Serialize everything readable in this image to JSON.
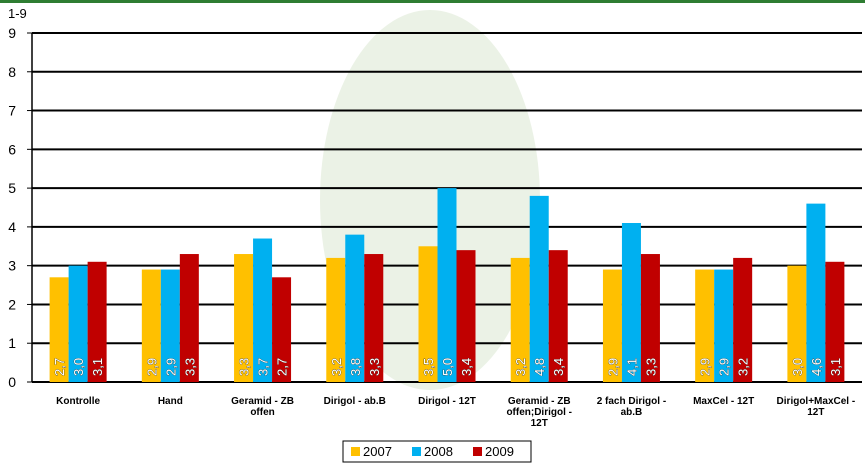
{
  "chart_data": {
    "type": "bar",
    "y_label": "1-9",
    "categories": [
      "Kontrolle",
      "Hand",
      "Geramid - ZB offen",
      "Dirigol - ab.B",
      "Dirigol - 12T",
      "Geramid - ZB offen;Dirigol - 12T",
      "2 fach Dirigol - ab.B",
      "MaxCel - 12T",
      "Dirigol+MaxCel - 12T"
    ],
    "series": [
      {
        "name": "2007",
        "color": "#ffc000",
        "values": [
          2.7,
          2.9,
          3.3,
          3.2,
          3.5,
          3.2,
          2.9,
          2.9,
          3.0
        ],
        "value_labels": [
          "2,7",
          "2,9",
          "3,3",
          "3,2",
          "3,5",
          "3,2",
          "2,9",
          "2,9",
          "3,0"
        ]
      },
      {
        "name": "2008",
        "color": "#00b0f0",
        "values": [
          3.0,
          2.9,
          3.7,
          3.8,
          5.0,
          4.8,
          4.1,
          2.9,
          4.6
        ],
        "value_labels": [
          "3,0",
          "2,9",
          "3,7",
          "3,8",
          "5,0",
          "4,8",
          "4,1",
          "2,9",
          "4,6"
        ]
      },
      {
        "name": "2009",
        "color": "#c00000",
        "values": [
          3.1,
          3.3,
          2.7,
          3.3,
          3.4,
          3.4,
          3.3,
          3.2,
          3.1
        ],
        "value_labels": [
          "3,1",
          "3,3",
          "2,7",
          "3,3",
          "3,4",
          "3,4",
          "3,3",
          "3,2",
          "3,1"
        ]
      }
    ],
    "ylim": [
      0,
      9
    ],
    "yticks": [
      0,
      1,
      2,
      3,
      4,
      5,
      6,
      7,
      8,
      9
    ],
    "grid": true,
    "legend": "bottom"
  }
}
